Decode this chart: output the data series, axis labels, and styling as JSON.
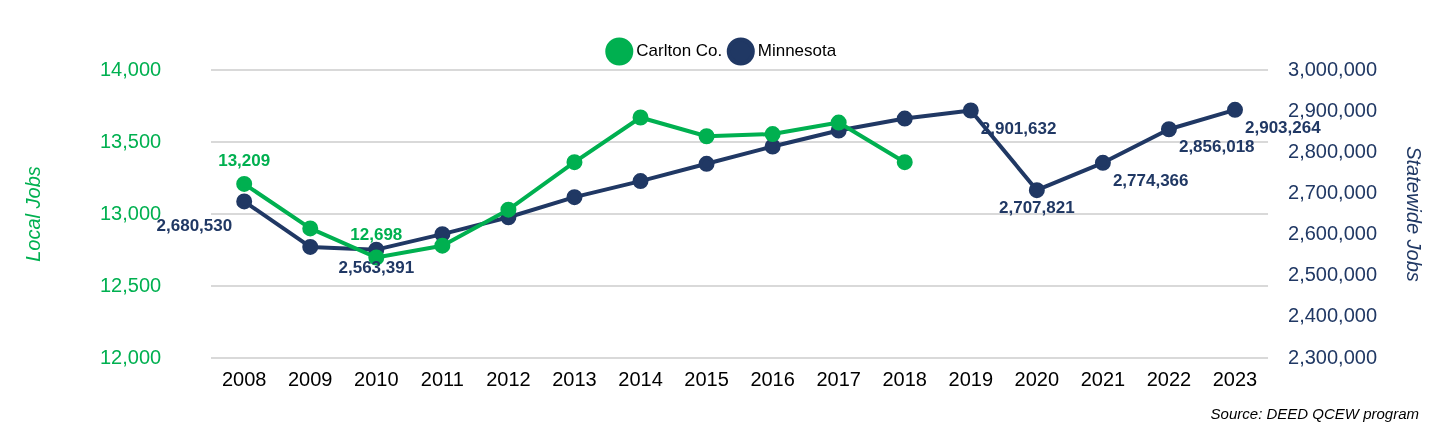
{
  "chart_data": {
    "type": "line",
    "categories": [
      "2008",
      "2009",
      "2010",
      "2011",
      "2012",
      "2013",
      "2014",
      "2015",
      "2016",
      "2017",
      "2018",
      "2019",
      "2020",
      "2021",
      "2022",
      "2023"
    ],
    "series": [
      {
        "name": "Carlton Co.",
        "color": "#00b050",
        "values": [
          13209,
          12900,
          12698,
          12780,
          13030,
          13360,
          13670,
          13540,
          13555,
          13635,
          13360,
          null,
          null,
          null,
          null,
          null
        ],
        "value_labels": [
          "13,209",
          null,
          "12,698",
          null,
          null,
          null,
          null,
          null,
          null,
          null,
          null,
          null,
          null,
          null,
          null,
          null
        ]
      },
      {
        "name": "Minnesota",
        "color": "#203864",
        "axis": "y2",
        "values": [
          2680530,
          2570000,
          2563391,
          2601000,
          2642000,
          2691000,
          2730000,
          2772000,
          2814000,
          2853000,
          2882000,
          2901632,
          2707821,
          2774366,
          2856018,
          2903264
        ],
        "value_labels": [
          "2,680,530",
          null,
          "2,563,391",
          null,
          null,
          null,
          null,
          null,
          null,
          null,
          null,
          "2,901,632",
          "2,707,821",
          "2,774,366",
          "2,856,018",
          "2,903,264"
        ]
      }
    ],
    "ylabel": "Local Jobs",
    "y2label": "Statewide Jobs",
    "ylim": [
      12000,
      14000
    ],
    "yticks": [
      {
        "value": 12000,
        "label": "12,000"
      },
      {
        "value": 12500,
        "label": "12,500"
      },
      {
        "value": 13000,
        "label": "13,000"
      },
      {
        "value": 13500,
        "label": "13,500"
      },
      {
        "value": 14000,
        "label": "14,000"
      }
    ],
    "y2lim": [
      2300000,
      3000000
    ],
    "y2ticks": [
      {
        "value": 2300000,
        "label": "2,300,000"
      },
      {
        "value": 2400000,
        "label": "2,400,000"
      },
      {
        "value": 2500000,
        "label": "2,500,000"
      },
      {
        "value": 2600000,
        "label": "2,600,000"
      },
      {
        "value": 2700000,
        "label": "2,700,000"
      },
      {
        "value": 2800000,
        "label": "2,800,000"
      },
      {
        "value": 2900000,
        "label": "2,900,000"
      },
      {
        "value": 3000000,
        "label": "3,000,000"
      }
    ],
    "grid": "y",
    "legend": "top",
    "marker": "circle",
    "line_style": "solid",
    "annotations": [
      "Source: DEED QCEW program"
    ]
  }
}
